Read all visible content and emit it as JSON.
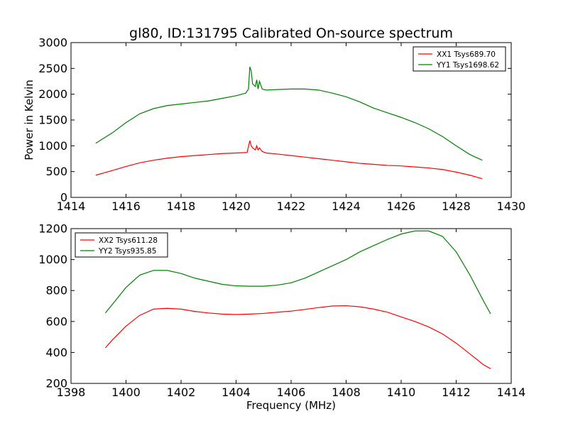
{
  "title": "gl80, ID:131795 Calibrated On-source spectrum",
  "chart_data": [
    {
      "type": "line",
      "ylabel": "Power in Kelvin",
      "xlabel": "",
      "xlim": [
        1414,
        1430
      ],
      "ylim": [
        0,
        3000
      ],
      "xticks": [
        1414,
        1416,
        1418,
        1420,
        1422,
        1424,
        1426,
        1428,
        1430
      ],
      "yticks": [
        0,
        500,
        1000,
        1500,
        2000,
        2500,
        3000
      ],
      "legend_position": "top-right",
      "series": [
        {
          "name": "XX1 Tsys689.70",
          "color": "#ff0000",
          "points": [
            [
              1414.9,
              430
            ],
            [
              1415.5,
              520
            ],
            [
              1416,
              600
            ],
            [
              1416.5,
              670
            ],
            [
              1417,
              720
            ],
            [
              1417.5,
              760
            ],
            [
              1418,
              790
            ],
            [
              1418.5,
              810
            ],
            [
              1419,
              830
            ],
            [
              1419.5,
              850
            ],
            [
              1420,
              860
            ],
            [
              1420.4,
              870
            ],
            [
              1420.5,
              1100
            ],
            [
              1420.55,
              1000
            ],
            [
              1420.6,
              960
            ],
            [
              1420.7,
              920
            ],
            [
              1420.75,
              1000
            ],
            [
              1420.8,
              920
            ],
            [
              1420.85,
              960
            ],
            [
              1420.95,
              890
            ],
            [
              1421.1,
              860
            ],
            [
              1421.5,
              840
            ],
            [
              1422,
              810
            ],
            [
              1422.5,
              780
            ],
            [
              1423,
              750
            ],
            [
              1423.5,
              720
            ],
            [
              1424,
              690
            ],
            [
              1424.5,
              660
            ],
            [
              1425,
              640
            ],
            [
              1425.5,
              620
            ],
            [
              1426,
              610
            ],
            [
              1426.5,
              590
            ],
            [
              1427,
              570
            ],
            [
              1427.5,
              540
            ],
            [
              1428,
              490
            ],
            [
              1428.5,
              430
            ],
            [
              1428.95,
              360
            ]
          ]
        },
        {
          "name": "YY1 Tsys1698.62",
          "color": "#008000",
          "points": [
            [
              1414.9,
              1050
            ],
            [
              1415.5,
              1250
            ],
            [
              1416,
              1450
            ],
            [
              1416.5,
              1620
            ],
            [
              1417,
              1720
            ],
            [
              1417.5,
              1780
            ],
            [
              1418,
              1810
            ],
            [
              1418.5,
              1840
            ],
            [
              1419,
              1870
            ],
            [
              1419.5,
              1920
            ],
            [
              1420,
              1970
            ],
            [
              1420.35,
              2020
            ],
            [
              1420.45,
              2100
            ],
            [
              1420.5,
              2530
            ],
            [
              1420.55,
              2450
            ],
            [
              1420.6,
              2200
            ],
            [
              1420.7,
              2150
            ],
            [
              1420.75,
              2280
            ],
            [
              1420.8,
              2100
            ],
            [
              1420.85,
              2250
            ],
            [
              1420.95,
              2100
            ],
            [
              1421.1,
              2080
            ],
            [
              1421.5,
              2090
            ],
            [
              1422,
              2100
            ],
            [
              1422.5,
              2100
            ],
            [
              1423,
              2080
            ],
            [
              1423.5,
              2020
            ],
            [
              1424,
              1950
            ],
            [
              1424.5,
              1850
            ],
            [
              1425,
              1730
            ],
            [
              1425.5,
              1640
            ],
            [
              1426,
              1550
            ],
            [
              1426.5,
              1450
            ],
            [
              1427,
              1330
            ],
            [
              1427.5,
              1180
            ],
            [
              1428,
              1000
            ],
            [
              1428.5,
              830
            ],
            [
              1428.95,
              720
            ]
          ]
        }
      ]
    },
    {
      "type": "line",
      "xlabel": "Frequency (MHz)",
      "ylabel": "",
      "xlim": [
        1398,
        1414
      ],
      "ylim": [
        200,
        1200
      ],
      "xticks": [
        1398,
        1400,
        1402,
        1404,
        1406,
        1408,
        1410,
        1412,
        1414
      ],
      "yticks": [
        200,
        400,
        600,
        800,
        1000,
        1200
      ],
      "legend_position": "top-left",
      "series": [
        {
          "name": "XX2 Tsys611.28",
          "color": "#ff0000",
          "points": [
            [
              1399.25,
              430
            ],
            [
              1399.5,
              480
            ],
            [
              1400,
              570
            ],
            [
              1400.5,
              640
            ],
            [
              1401,
              680
            ],
            [
              1401.5,
              685
            ],
            [
              1402,
              680
            ],
            [
              1402.5,
              665
            ],
            [
              1403,
              655
            ],
            [
              1403.5,
              648
            ],
            [
              1404,
              645
            ],
            [
              1404.5,
              648
            ],
            [
              1405,
              652
            ],
            [
              1405.5,
              660
            ],
            [
              1406,
              667
            ],
            [
              1406.5,
              678
            ],
            [
              1407,
              690
            ],
            [
              1407.5,
              700
            ],
            [
              1408,
              702
            ],
            [
              1408.5,
              695
            ],
            [
              1409,
              680
            ],
            [
              1409.5,
              660
            ],
            [
              1410,
              630
            ],
            [
              1410.5,
              600
            ],
            [
              1411,
              565
            ],
            [
              1411.5,
              520
            ],
            [
              1412,
              460
            ],
            [
              1412.5,
              390
            ],
            [
              1413,
              320
            ],
            [
              1413.25,
              295
            ]
          ]
        },
        {
          "name": "YY2 Tsys935.85",
          "color": "#008000",
          "points": [
            [
              1399.25,
              655
            ],
            [
              1399.5,
              710
            ],
            [
              1400,
              820
            ],
            [
              1400.5,
              900
            ],
            [
              1401,
              930
            ],
            [
              1401.5,
              930
            ],
            [
              1402,
              910
            ],
            [
              1402.5,
              880
            ],
            [
              1403,
              860
            ],
            [
              1403.5,
              840
            ],
            [
              1404,
              830
            ],
            [
              1404.5,
              828
            ],
            [
              1405,
              828
            ],
            [
              1405.5,
              835
            ],
            [
              1406,
              850
            ],
            [
              1406.5,
              880
            ],
            [
              1407,
              920
            ],
            [
              1407.5,
              960
            ],
            [
              1408,
              1000
            ],
            [
              1408.5,
              1050
            ],
            [
              1409,
              1090
            ],
            [
              1409.5,
              1130
            ],
            [
              1410,
              1165
            ],
            [
              1410.5,
              1185
            ],
            [
              1411,
              1185
            ],
            [
              1411.5,
              1150
            ],
            [
              1412,
              1050
            ],
            [
              1412.5,
              900
            ],
            [
              1413,
              730
            ],
            [
              1413.25,
              650
            ]
          ]
        }
      ]
    }
  ]
}
